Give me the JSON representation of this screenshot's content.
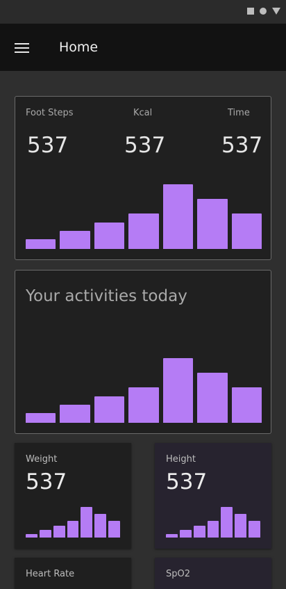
{
  "appbar": {
    "title": "Home"
  },
  "top_card": {
    "stats": [
      {
        "label": "Foot Steps",
        "value": "537"
      },
      {
        "label": "Kcal",
        "value": "537"
      },
      {
        "label": "Time",
        "value": "537"
      }
    ]
  },
  "activity_card": {
    "title": "Your activities today"
  },
  "tiles": [
    {
      "label": "Weight",
      "value": "537"
    },
    {
      "label": "Height",
      "value": "537"
    },
    {
      "label": "Heart Rate"
    },
    {
      "label": "SpO2"
    }
  ],
  "colors": {
    "accent": "#b57cf5",
    "background": "#2f2f2f",
    "appbar": "#121212",
    "card": "#202020"
  },
  "icons": [
    "menu-icon"
  ],
  "chart_data": [
    {
      "type": "bar",
      "values": [
        14,
        26,
        38,
        51,
        93,
        72,
        51
      ]
    },
    {
      "type": "bar",
      "values": [
        14,
        26,
        38,
        51,
        93,
        72,
        51
      ]
    },
    {
      "type": "bar",
      "values": [
        5,
        11,
        17,
        23,
        43,
        33,
        23
      ]
    },
    {
      "type": "bar",
      "values": [
        5,
        11,
        17,
        23,
        43,
        33,
        23
      ]
    }
  ]
}
